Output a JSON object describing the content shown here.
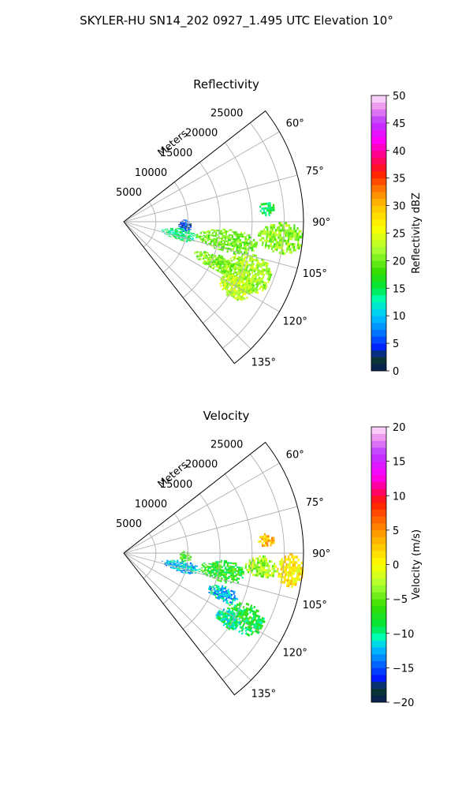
{
  "figure": {
    "suptitle": "SKYLER-HU  SN14_202  0927_1.495 UTC Elevation 10°"
  },
  "chart_data": [
    {
      "type": "heatmap",
      "subtype": "polar-sector (PPI radar sweep)",
      "title": "Reflectivity",
      "radial_label": "Meters",
      "radial_ticks": [
        "5000",
        "10000",
        "15000",
        "20000",
        "25000"
      ],
      "radial_range_m": [
        0,
        28000
      ],
      "azimuth_ticks": [
        "60°",
        "75°",
        "90°",
        "105°",
        "120°",
        "135°"
      ],
      "azimuth_range_deg": [
        52,
        142
      ],
      "grid": true,
      "colorbar": {
        "label": "Reflectivity dBZ",
        "range": [
          0,
          50
        ],
        "ticks": [
          "0",
          "5",
          "10",
          "15",
          "20",
          "25",
          "30",
          "35",
          "40",
          "45",
          "50"
        ],
        "stops": [
          {
            "v": 0,
            "c": "#071a5a"
          },
          {
            "v": 2.5,
            "c": "#0b3d2a"
          },
          {
            "v": 4,
            "c": "#0018ff"
          },
          {
            "v": 7,
            "c": "#0077ff"
          },
          {
            "v": 10,
            "c": "#00c8ff"
          },
          {
            "v": 13,
            "c": "#00ffb0"
          },
          {
            "v": 15,
            "c": "#00e640"
          },
          {
            "v": 18,
            "c": "#33dd00"
          },
          {
            "v": 22,
            "c": "#aaff33"
          },
          {
            "v": 26,
            "c": "#ffff00"
          },
          {
            "v": 30,
            "c": "#ffc000"
          },
          {
            "v": 33,
            "c": "#ff7700"
          },
          {
            "v": 36,
            "c": "#ff1a00"
          },
          {
            "v": 39,
            "c": "#ff0080"
          },
          {
            "v": 42,
            "c": "#ff00ff"
          },
          {
            "v": 45,
            "c": "#bb33ff"
          },
          {
            "v": 48,
            "c": "#ee99ee"
          },
          {
            "v": 50,
            "c": "#ffe6ff"
          }
        ]
      },
      "echoes": [
        {
          "az_deg": [
            88,
            99
          ],
          "range_m": [
            8500,
            10500
          ],
          "value": 5
        },
        {
          "az_deg": [
            81.5,
            87
          ],
          "range_m": [
            21000,
            23500
          ],
          "value": 15
        },
        {
          "az_deg": [
            96.5,
            108
          ],
          "range_m": [
            6000,
            11500
          ],
          "value": 14
        },
        {
          "az_deg": [
            94,
            106
          ],
          "range_m": [
            11500,
            21000
          ],
          "value": 20
        },
        {
          "az_deg": [
            90,
            101
          ],
          "range_m": [
            21000,
            28000
          ],
          "value": 21
        },
        {
          "az_deg": [
            104,
            120
          ],
          "range_m": [
            17000,
            24500
          ],
          "value": 22
        },
        {
          "az_deg": [
            114,
            125
          ],
          "range_m": [
            17500,
            22500
          ],
          "value": 23
        },
        {
          "az_deg": [
            109,
            118
          ],
          "range_m": [
            12000,
            19000
          ],
          "value": 21
        }
      ]
    },
    {
      "type": "heatmap",
      "subtype": "polar-sector (PPI radar sweep)",
      "title": "Velocity",
      "radial_label": "Meters",
      "radial_ticks": [
        "5000",
        "10000",
        "15000",
        "20000",
        "25000"
      ],
      "radial_range_m": [
        0,
        28000
      ],
      "azimuth_ticks": [
        "60°",
        "75°",
        "90°",
        "105°",
        "120°",
        "135°"
      ],
      "azimuth_range_deg": [
        52,
        142
      ],
      "grid": true,
      "colorbar": {
        "label": "Velocity (m/s)",
        "range": [
          -20,
          20
        ],
        "ticks": [
          "−20",
          "−15",
          "−10",
          "−5",
          "0",
          "5",
          "10",
          "15",
          "20"
        ],
        "stops": [
          {
            "v": -20,
            "c": "#071a5a"
          },
          {
            "v": -18,
            "c": "#0b3d2a"
          },
          {
            "v": -16.5,
            "c": "#0018ff"
          },
          {
            "v": -14,
            "c": "#0077ff"
          },
          {
            "v": -12,
            "c": "#00c8ff"
          },
          {
            "v": -10.5,
            "c": "#00ffb0"
          },
          {
            "v": -9,
            "c": "#00e640"
          },
          {
            "v": -6,
            "c": "#33dd00"
          },
          {
            "v": -3,
            "c": "#aaff33"
          },
          {
            "v": 0,
            "c": "#ffff00"
          },
          {
            "v": 3,
            "c": "#ffc000"
          },
          {
            "v": 6,
            "c": "#ff7700"
          },
          {
            "v": 9,
            "c": "#ff1a00"
          },
          {
            "v": 11,
            "c": "#ff0080"
          },
          {
            "v": 13,
            "c": "#ff00ff"
          },
          {
            "v": 16,
            "c": "#bb33ff"
          },
          {
            "v": 18.5,
            "c": "#ee99ee"
          },
          {
            "v": 20,
            "c": "#ffe6ff"
          }
        ]
      },
      "echoes": [
        {
          "az_deg": [
            88,
            98
          ],
          "range_m": [
            8500,
            10500
          ],
          "value": -6
        },
        {
          "az_deg": [
            82,
            87
          ],
          "range_m": [
            21000,
            23500
          ],
          "value": 3
        },
        {
          "az_deg": [
            97,
            108
          ],
          "range_m": [
            6000,
            12000
          ],
          "value": -12
        },
        {
          "az_deg": [
            94,
            106
          ],
          "range_m": [
            12000,
            19000
          ],
          "value": -7
        },
        {
          "az_deg": [
            91,
            100
          ],
          "range_m": [
            19000,
            24000
          ],
          "value": -3
        },
        {
          "az_deg": [
            90,
            101
          ],
          "range_m": [
            24000,
            28000
          ],
          "value": 1
        },
        {
          "az_deg": [
            108,
            116
          ],
          "range_m": [
            14000,
            19000
          ],
          "value": -12
        },
        {
          "az_deg": [
            112,
            124
          ],
          "range_m": [
            18000,
            24500
          ],
          "value": -8
        },
        {
          "az_deg": [
            118,
            126
          ],
          "range_m": [
            17000,
            21000
          ],
          "value": -10
        }
      ]
    }
  ]
}
